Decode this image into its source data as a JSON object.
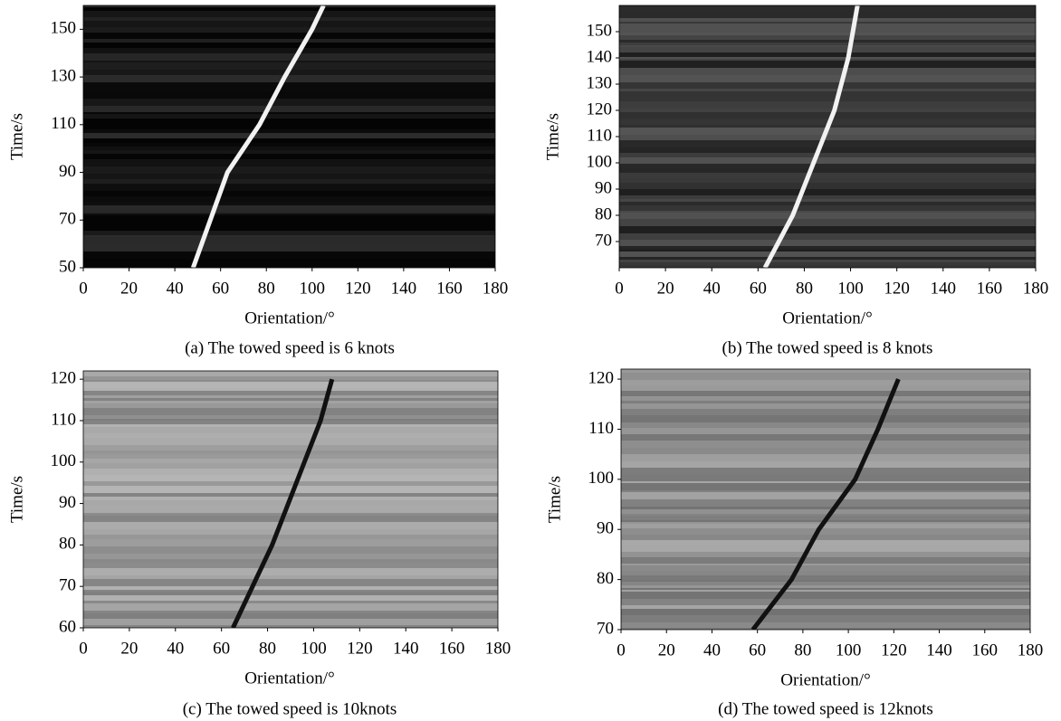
{
  "chart_data": [
    {
      "type": "line",
      "caption": "(a) The towed speed is 6 knots",
      "xlabel": "Orientation/°",
      "ylabel": "Time/s",
      "xlim": [
        0,
        180
      ],
      "ylim": [
        50,
        160
      ],
      "xticks": [
        0,
        20,
        40,
        60,
        80,
        100,
        120,
        140,
        160,
        180
      ],
      "yticks": [
        50,
        70,
        90,
        110,
        130,
        150
      ],
      "background": "#141414",
      "series": [
        {
          "color": "#f2f2f2",
          "x": [
            48,
            63,
            77,
            88,
            100,
            105
          ],
          "values": [
            50,
            90,
            110,
            130,
            150,
            160
          ]
        }
      ]
    },
    {
      "type": "line",
      "caption": "(b) The towed speed is 8 knots",
      "xlabel": "Orientation/°",
      "ylabel": "Time/s",
      "xlim": [
        0,
        180
      ],
      "ylim": [
        60,
        160
      ],
      "xticks": [
        0,
        20,
        40,
        60,
        80,
        100,
        120,
        140,
        160,
        180
      ],
      "yticks": [
        70,
        80,
        90,
        100,
        110,
        120,
        130,
        140,
        150
      ],
      "background": "#3a3a3a",
      "series": [
        {
          "color": "#f2f2f2",
          "x": [
            63,
            75,
            84,
            93,
            99,
            103
          ],
          "values": [
            60,
            80,
            100,
            120,
            140,
            160
          ]
        }
      ]
    },
    {
      "type": "line",
      "caption": "(c) The towed speed is 10knots",
      "xlabel": "Orientation/°",
      "ylabel": "Time/s",
      "xlim": [
        0,
        180
      ],
      "ylim": [
        60,
        122
      ],
      "xticks": [
        0,
        20,
        40,
        60,
        80,
        100,
        120,
        140,
        160,
        180
      ],
      "yticks": [
        60,
        70,
        80,
        90,
        100,
        110,
        120
      ],
      "background": "#9a9a9a",
      "series": [
        {
          "color": "#111111",
          "x": [
            65,
            82,
            96,
            103,
            108
          ],
          "values": [
            60,
            80,
            100,
            110,
            120
          ]
        }
      ]
    },
    {
      "type": "line",
      "caption": "(d) The towed speed is 12knots",
      "xlabel": "Orientation/°",
      "ylabel": "Time/s",
      "xlim": [
        0,
        180
      ],
      "ylim": [
        70,
        122
      ],
      "xticks": [
        0,
        20,
        40,
        60,
        80,
        100,
        120,
        140,
        160,
        180
      ],
      "yticks": [
        70,
        80,
        90,
        100,
        110,
        120
      ],
      "background": "#8e8e8e",
      "series": [
        {
          "color": "#111111",
          "x": [
            58,
            75,
            87,
            103,
            113,
            122
          ],
          "values": [
            70,
            80,
            90,
            100,
            110,
            120
          ]
        }
      ]
    }
  ]
}
